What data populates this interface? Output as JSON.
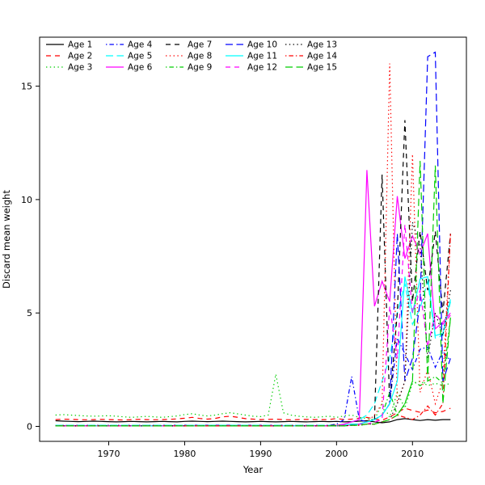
{
  "figure": {
    "background": "#ffffff",
    "border_color": "#000000"
  },
  "chart_data": {
    "type": "line",
    "title": "",
    "xlabel": "Year",
    "ylabel": "Discard mean weight",
    "grid": false,
    "legend_position": "top-left",
    "legend_columns": 5,
    "legend_rows": 3,
    "xlim": [
      1960.9,
      2017.1
    ],
    "ylim": [
      -0.66,
      17.16
    ],
    "xticks": [
      1970,
      1980,
      1990,
      2000,
      2010
    ],
    "yticks": [
      0,
      5,
      10,
      15
    ],
    "x": [
      1963,
      1964,
      1965,
      1966,
      1967,
      1968,
      1969,
      1970,
      1971,
      1972,
      1973,
      1974,
      1975,
      1976,
      1977,
      1978,
      1979,
      1980,
      1981,
      1982,
      1983,
      1984,
      1985,
      1986,
      1987,
      1988,
      1989,
      1990,
      1991,
      1992,
      1993,
      1994,
      1995,
      1996,
      1997,
      1998,
      1999,
      2000,
      2001,
      2002,
      2003,
      2004,
      2005,
      2006,
      2007,
      2008,
      2009,
      2010,
      2011,
      2012,
      2013,
      2014,
      2015
    ],
    "series": [
      {
        "name": "Age 1",
        "color": "#000000",
        "linestyle": "solid",
        "values": [
          0.25,
          0.23,
          0.22,
          0.21,
          0.22,
          0.23,
          0.22,
          0.21,
          0.2,
          0.21,
          0.22,
          0.21,
          0.2,
          0.21,
          0.22,
          0.21,
          0.2,
          0.22,
          0.23,
          0.22,
          0.21,
          0.22,
          0.23,
          0.22,
          0.21,
          0.2,
          0.21,
          0.22,
          0.21,
          0.2,
          0.21,
          0.22,
          0.21,
          0.2,
          0.21,
          0.22,
          0.21,
          0.22,
          0.2,
          0.21,
          0.23,
          0.25,
          0.2,
          0.16,
          0.2,
          0.3,
          0.34,
          0.3,
          0.26,
          0.3,
          0.27,
          0.3,
          0.3
        ]
      },
      {
        "name": "Age 2",
        "color": "#ff0000",
        "linestyle": "dashed",
        "values": [
          0.3,
          0.32,
          0.31,
          0.3,
          0.29,
          0.3,
          0.31,
          0.3,
          0.29,
          0.28,
          0.3,
          0.31,
          0.3,
          0.29,
          0.3,
          0.31,
          0.33,
          0.36,
          0.4,
          0.35,
          0.32,
          0.35,
          0.42,
          0.45,
          0.4,
          0.34,
          0.32,
          0.3,
          0.31,
          0.32,
          0.3,
          0.29,
          0.3,
          0.31,
          0.3,
          0.3,
          0.3,
          0.35,
          0.3,
          0.32,
          0.36,
          0.4,
          0.32,
          0.27,
          0.42,
          0.6,
          0.8,
          0.7,
          0.62,
          0.72,
          0.6,
          0.66,
          0.8
        ]
      },
      {
        "name": "Age 3",
        "color": "#00cd00",
        "linestyle": "dotted",
        "values": [
          0.5,
          0.52,
          0.5,
          0.48,
          0.46,
          0.45,
          0.46,
          0.47,
          0.45,
          0.42,
          0.4,
          0.42,
          0.44,
          0.42,
          0.4,
          0.43,
          0.46,
          0.52,
          0.56,
          0.5,
          0.46,
          0.5,
          0.56,
          0.6,
          0.55,
          0.5,
          0.45,
          0.43,
          0.5,
          2.3,
          0.6,
          0.5,
          0.45,
          0.42,
          0.4,
          0.42,
          0.45,
          0.4,
          0.46,
          0.5,
          0.4,
          0.35,
          0.3,
          1.0,
          0.4,
          1.5,
          0.8,
          1.9,
          2.0,
          1.8,
          1.9,
          1.8,
          1.9
        ]
      },
      {
        "name": "Age 4",
        "color": "#0000ff",
        "linestyle": "dotdash",
        "values": [
          0.05,
          0.05,
          0.05,
          0.05,
          0.05,
          0.05,
          0.05,
          0.05,
          0.05,
          0.05,
          0.05,
          0.05,
          0.05,
          0.05,
          0.05,
          0.05,
          0.05,
          0.05,
          0.05,
          0.05,
          0.05,
          0.05,
          0.05,
          0.05,
          0.05,
          0.05,
          0.05,
          0.05,
          0.05,
          0.05,
          0.05,
          0.05,
          0.05,
          0.05,
          0.05,
          0.05,
          0.05,
          0.1,
          0.3,
          2.2,
          0.3,
          0.2,
          0.3,
          0.5,
          1.0,
          3.9,
          3.2,
          2.5,
          3.4,
          3.5,
          2.6,
          3.3,
          2.9
        ]
      },
      {
        "name": "Age 5",
        "color": "#00ffff",
        "linestyle": "longdash",
        "values": [
          0.05,
          0.05,
          0.05,
          0.05,
          0.05,
          0.05,
          0.05,
          0.05,
          0.05,
          0.05,
          0.05,
          0.05,
          0.05,
          0.05,
          0.05,
          0.05,
          0.05,
          0.05,
          0.05,
          0.05,
          0.05,
          0.05,
          0.05,
          0.05,
          0.05,
          0.05,
          0.05,
          0.05,
          0.05,
          0.05,
          0.05,
          0.05,
          0.05,
          0.05,
          0.05,
          0.05,
          0.05,
          0.05,
          0.1,
          0.2,
          0.3,
          0.5,
          1.0,
          2.0,
          3.0,
          5.0,
          6.3,
          4.5,
          5.2,
          6.4,
          3.9,
          4.0,
          5.5
        ]
      },
      {
        "name": "Age 6",
        "color": "#ff00ff",
        "linestyle": "solid",
        "values": [
          0.03,
          0.03,
          0.03,
          0.03,
          0.03,
          0.03,
          0.03,
          0.03,
          0.03,
          0.03,
          0.03,
          0.03,
          0.03,
          0.03,
          0.03,
          0.03,
          0.03,
          0.03,
          0.03,
          0.03,
          0.03,
          0.03,
          0.03,
          0.03,
          0.03,
          0.03,
          0.03,
          0.03,
          0.03,
          0.03,
          0.03,
          0.03,
          0.03,
          0.03,
          0.03,
          0.03,
          0.03,
          0.05,
          0.1,
          0.2,
          0.3,
          11.3,
          5.3,
          6.4,
          5.5,
          10.15,
          7.4,
          8.4,
          7.6,
          8.5,
          4.3,
          4.6,
          5.0
        ]
      },
      {
        "name": "Age 7",
        "color": "#000000",
        "linestyle": "dashed",
        "values": [
          0.03,
          0.03,
          0.03,
          0.03,
          0.03,
          0.03,
          0.03,
          0.03,
          0.03,
          0.03,
          0.03,
          0.03,
          0.03,
          0.03,
          0.03,
          0.03,
          0.03,
          0.03,
          0.03,
          0.03,
          0.03,
          0.03,
          0.03,
          0.03,
          0.03,
          0.03,
          0.03,
          0.03,
          0.03,
          0.03,
          0.03,
          0.03,
          0.03,
          0.03,
          0.03,
          0.03,
          0.03,
          0.05,
          0.05,
          0.1,
          0.1,
          0.2,
          0.3,
          11.1,
          1.0,
          5.0,
          13.5,
          5.5,
          8.6,
          6.0,
          8.6,
          5.0,
          8.5
        ]
      },
      {
        "name": "Age 8",
        "color": "#ff0000",
        "linestyle": "dotted",
        "values": [
          0.03,
          0.03,
          0.03,
          0.03,
          0.03,
          0.03,
          0.03,
          0.03,
          0.03,
          0.03,
          0.03,
          0.03,
          0.03,
          0.03,
          0.03,
          0.03,
          0.03,
          0.03,
          0.03,
          0.03,
          0.03,
          0.03,
          0.03,
          0.03,
          0.03,
          0.03,
          0.03,
          0.03,
          0.03,
          0.03,
          0.03,
          0.03,
          0.03,
          0.03,
          0.03,
          0.03,
          0.03,
          0.05,
          0.05,
          0.1,
          0.1,
          0.2,
          0.5,
          1.0,
          16.0,
          1.0,
          2.0,
          12.0,
          1.5,
          2.5,
          1.0,
          2.0,
          8.5
        ]
      },
      {
        "name": "Age 9",
        "color": "#00cd00",
        "linestyle": "dotdash",
        "values": [
          0.03,
          0.03,
          0.03,
          0.03,
          0.03,
          0.03,
          0.03,
          0.03,
          0.03,
          0.03,
          0.03,
          0.03,
          0.03,
          0.03,
          0.03,
          0.03,
          0.03,
          0.03,
          0.03,
          0.03,
          0.03,
          0.03,
          0.03,
          0.03,
          0.03,
          0.03,
          0.03,
          0.03,
          0.03,
          0.03,
          0.03,
          0.03,
          0.03,
          0.03,
          0.03,
          0.03,
          0.03,
          0.05,
          0.05,
          0.1,
          0.1,
          0.2,
          0.3,
          0.5,
          1.5,
          0.5,
          1.0,
          2.0,
          1.8,
          2.0,
          2.2,
          1.9,
          4.8
        ]
      },
      {
        "name": "Age 10",
        "color": "#0000ff",
        "linestyle": "longdash",
        "values": [
          0.02,
          0.02,
          0.02,
          0.02,
          0.02,
          0.02,
          0.02,
          0.02,
          0.02,
          0.02,
          0.02,
          0.02,
          0.02,
          0.02,
          0.02,
          0.02,
          0.02,
          0.02,
          0.02,
          0.02,
          0.02,
          0.02,
          0.02,
          0.02,
          0.02,
          0.02,
          0.02,
          0.02,
          0.02,
          0.02,
          0.02,
          0.02,
          0.02,
          0.02,
          0.02,
          0.02,
          0.02,
          0.02,
          0.05,
          0.1,
          0.1,
          0.2,
          0.3,
          0.5,
          1.0,
          8.5,
          2.0,
          3.0,
          5.5,
          16.3,
          16.5,
          2.0,
          3.0
        ]
      },
      {
        "name": "Age 11",
        "color": "#00ffff",
        "linestyle": "solid",
        "values": [
          0.02,
          0.02,
          0.02,
          0.02,
          0.02,
          0.02,
          0.02,
          0.02,
          0.02,
          0.02,
          0.02,
          0.02,
          0.02,
          0.02,
          0.02,
          0.02,
          0.02,
          0.02,
          0.02,
          0.02,
          0.02,
          0.02,
          0.02,
          0.02,
          0.02,
          0.02,
          0.02,
          0.02,
          0.02,
          0.02,
          0.02,
          0.02,
          0.02,
          0.02,
          0.02,
          0.02,
          0.02,
          0.02,
          0.05,
          0.1,
          0.1,
          0.2,
          0.3,
          0.5,
          1.0,
          2.0,
          6.6,
          5.0,
          6.5,
          6.6,
          4.0,
          4.1,
          5.6
        ]
      },
      {
        "name": "Age 12",
        "color": "#ff00ff",
        "linestyle": "dashed",
        "values": [
          0.02,
          0.02,
          0.02,
          0.02,
          0.02,
          0.02,
          0.02,
          0.02,
          0.02,
          0.02,
          0.02,
          0.02,
          0.02,
          0.02,
          0.02,
          0.02,
          0.02,
          0.02,
          0.02,
          0.02,
          0.02,
          0.02,
          0.02,
          0.02,
          0.02,
          0.02,
          0.02,
          0.02,
          0.02,
          0.02,
          0.02,
          0.02,
          0.02,
          0.02,
          0.02,
          0.02,
          0.02,
          0.02,
          0.05,
          0.05,
          0.1,
          0.1,
          0.2,
          0.3,
          5.3,
          3.0,
          8.9,
          5.0,
          6.0,
          3.5,
          5.0,
          4.5,
          4.9
        ]
      },
      {
        "name": "Age 13",
        "color": "#000000",
        "linestyle": "dotted",
        "values": [
          0.02,
          0.02,
          0.02,
          0.02,
          0.02,
          0.02,
          0.02,
          0.02,
          0.02,
          0.02,
          0.02,
          0.02,
          0.02,
          0.02,
          0.02,
          0.02,
          0.02,
          0.02,
          0.02,
          0.02,
          0.02,
          0.02,
          0.02,
          0.02,
          0.02,
          0.02,
          0.02,
          0.02,
          0.02,
          0.02,
          0.02,
          0.02,
          0.02,
          0.02,
          0.02,
          0.02,
          0.02,
          0.02,
          0.02,
          0.05,
          0.05,
          0.1,
          0.1,
          0.2,
          0.3,
          1.0,
          2.0,
          9.0,
          8.0,
          3.0,
          5.0,
          4.0,
          6.0
        ]
      },
      {
        "name": "Age 14",
        "color": "#ff0000",
        "linestyle": "dotdash",
        "values": [
          0.02,
          0.02,
          0.02,
          0.02,
          0.02,
          0.02,
          0.02,
          0.02,
          0.02,
          0.02,
          0.02,
          0.02,
          0.02,
          0.02,
          0.02,
          0.02,
          0.02,
          0.02,
          0.02,
          0.02,
          0.02,
          0.02,
          0.02,
          0.02,
          0.02,
          0.02,
          0.02,
          0.02,
          0.02,
          0.02,
          0.02,
          0.02,
          0.02,
          0.02,
          0.02,
          0.02,
          0.02,
          0.02,
          0.02,
          0.05,
          0.05,
          0.1,
          0.1,
          0.2,
          0.3,
          0.5,
          0.4,
          0.3,
          0.5,
          0.9,
          0.5,
          1.0,
          8.5
        ]
      },
      {
        "name": "Age 15",
        "color": "#00cd00",
        "linestyle": "longdash",
        "values": [
          0.02,
          0.02,
          0.02,
          0.02,
          0.02,
          0.02,
          0.02,
          0.02,
          0.02,
          0.02,
          0.02,
          0.02,
          0.02,
          0.02,
          0.02,
          0.02,
          0.02,
          0.02,
          0.02,
          0.02,
          0.02,
          0.02,
          0.02,
          0.02,
          0.02,
          0.02,
          0.02,
          0.02,
          0.02,
          0.02,
          0.02,
          0.02,
          0.02,
          0.02,
          0.02,
          0.02,
          0.02,
          0.02,
          0.02,
          0.05,
          0.05,
          0.1,
          0.1,
          0.2,
          0.3,
          0.5,
          1.0,
          2.0,
          11.7,
          2.0,
          11.5,
          1.0,
          4.8
        ]
      }
    ]
  }
}
